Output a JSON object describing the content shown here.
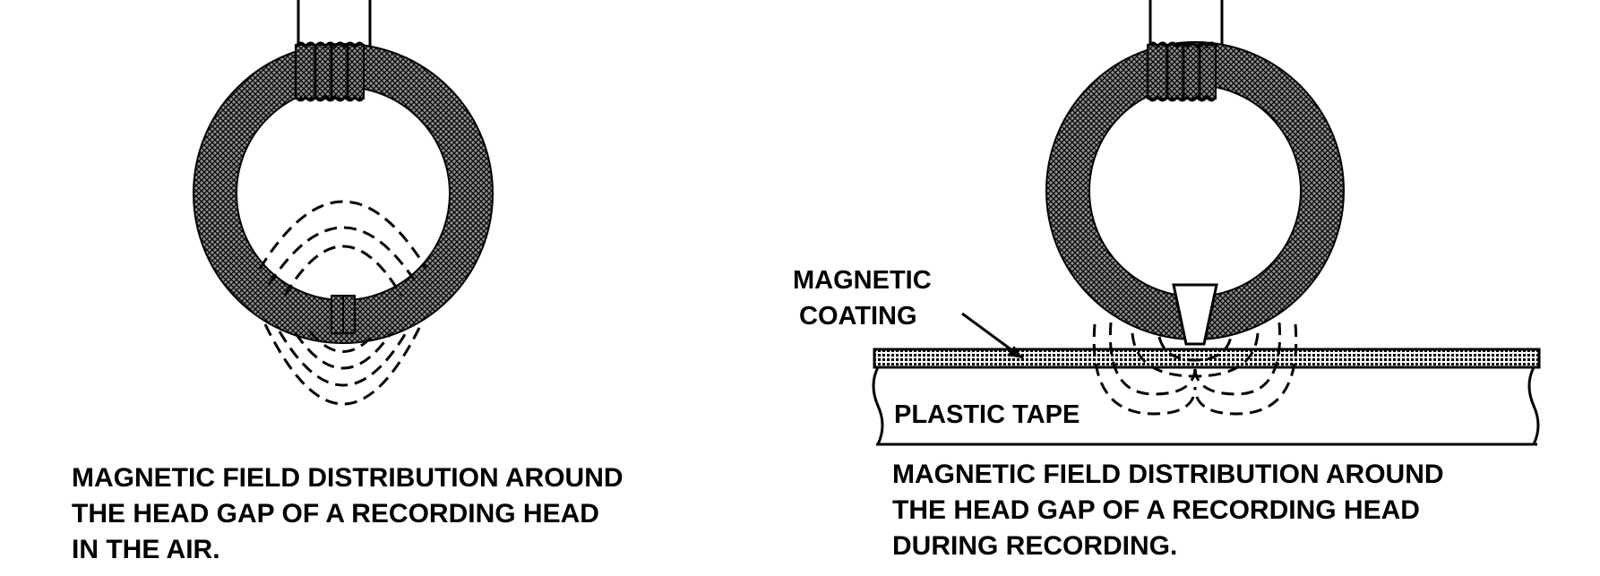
{
  "left_panel": {
    "caption": [
      "MAGNETIC FIELD DISTRIBUTION AROUND",
      "THE HEAD GAP OF A RECORDING HEAD",
      "IN THE AIR."
    ]
  },
  "right_panel": {
    "coating_label": [
      "MAGNETIC",
      "COATING"
    ],
    "tape_label": "PLASTIC TAPE",
    "caption": [
      "MAGNETIC FIELD DISTRIBUTION AROUND",
      "THE HEAD GAP OF A RECORDING HEAD",
      "DURING RECORDING."
    ]
  },
  "colors": {
    "ink": "#000000",
    "core_fill": "#9a9a9a",
    "paper": "#ffffff"
  }
}
